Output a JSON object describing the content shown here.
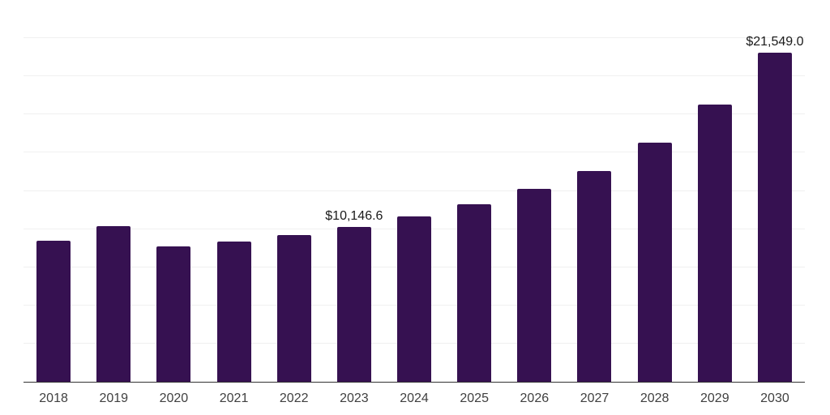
{
  "chart_data": {
    "type": "bar",
    "title": "",
    "xlabel": "",
    "ylabel": "",
    "categories": [
      "2018",
      "2019",
      "2020",
      "2021",
      "2022",
      "2023",
      "2024",
      "2025",
      "2026",
      "2027",
      "2028",
      "2029",
      "2030"
    ],
    "values": [
      9250,
      10190,
      8850,
      9170,
      9630,
      10146.6,
      10810,
      11610,
      12620,
      13820,
      15660,
      18150,
      21549.0
    ],
    "data_labels": {
      "2023": "$10,146.6",
      "2030": "$21,549.0"
    },
    "ylim": [
      0,
      25000
    ],
    "gridline_step": 2500,
    "grid": true,
    "legend": false,
    "colors": {
      "bar": "#361151",
      "gridline": "#f0f0f0",
      "axis_line": "#333333",
      "tick_label": "#404040",
      "data_label": "#1a1a1a",
      "background": "#ffffff"
    }
  }
}
